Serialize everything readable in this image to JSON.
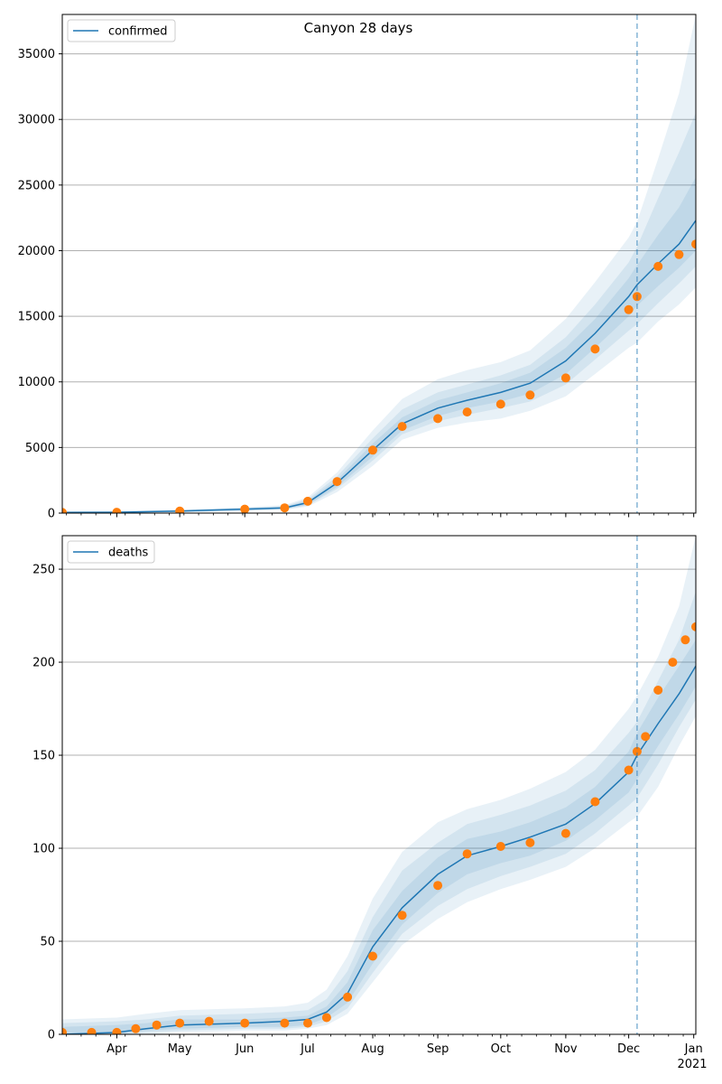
{
  "figure": {
    "title": "Canyon 28 days"
  },
  "colors": {
    "model_line": "#1f77b4",
    "observed": "#ff7f0e",
    "band": "#1f77b4",
    "grid": "#b0b0b0",
    "forecast_line": "#1f77b4"
  },
  "x_axis": {
    "month_labels": [
      "Apr",
      "May",
      "Jun",
      "Jul",
      "Aug",
      "Sep",
      "Oct",
      "Nov",
      "Dec",
      "Jan"
    ],
    "month_dates": [
      "2020-04-01",
      "2020-05-01",
      "2020-06-01",
      "2020-07-01",
      "2020-08-01",
      "2020-09-01",
      "2020-10-01",
      "2020-11-01",
      "2020-12-01",
      "2021-01-01"
    ],
    "year_label": "2021",
    "range": [
      "2020-03-06",
      "2021-01-02"
    ],
    "forecast_start": "2020-12-05"
  },
  "chart_data": [
    {
      "type": "line",
      "legend": "confirmed",
      "legend_position": "upper-left",
      "grid": "horizontal",
      "ylim": [
        0,
        38000
      ],
      "yticks": [
        0,
        5000,
        10000,
        15000,
        20000,
        25000,
        30000,
        35000
      ],
      "model": {
        "x": [
          "2020-03-06",
          "2020-04-01",
          "2020-05-01",
          "2020-06-01",
          "2020-06-20",
          "2020-07-01",
          "2020-07-15",
          "2020-08-01",
          "2020-08-15",
          "2020-09-01",
          "2020-09-15",
          "2020-10-01",
          "2020-10-15",
          "2020-11-01",
          "2020-11-15",
          "2020-12-01",
          "2020-12-05",
          "2020-12-15",
          "2020-12-25",
          "2021-01-02"
        ],
        "y": [
          50,
          60,
          150,
          300,
          400,
          800,
          2300,
          4800,
          6800,
          8000,
          8600,
          9200,
          9900,
          11600,
          13700,
          16500,
          17400,
          19000,
          20500,
          22300
        ]
      },
      "bands": [
        {
          "lower": [
            0,
            0,
            60,
            150,
            250,
            500,
            1600,
            3600,
            5600,
            6500,
            6900,
            7200,
            7800,
            8900,
            10600,
            12600,
            13000,
            14600,
            15900,
            17200
          ],
          "upper": [
            120,
            150,
            260,
            450,
            600,
            1200,
            3100,
            6300,
            8700,
            10200,
            10900,
            11500,
            12400,
            14800,
            17600,
            21000,
            22200,
            27000,
            32000,
            38000
          ]
        },
        {
          "lower": [
            0,
            10,
            80,
            190,
            290,
            590,
            1850,
            4000,
            6000,
            7000,
            7500,
            8000,
            8500,
            9800,
            11700,
            13900,
            14400,
            16000,
            17500,
            18800
          ],
          "upper": [
            100,
            120,
            220,
            400,
            540,
            1050,
            2800,
            5700,
            7900,
            9200,
            9800,
            10500,
            11300,
            13400,
            15900,
            19100,
            20300,
            24000,
            27500,
            30500
          ]
        },
        {
          "lower": [
            10,
            25,
            100,
            230,
            330,
            650,
            2000,
            4300,
            6300,
            7400,
            8000,
            8500,
            9100,
            10600,
            12600,
            15000,
            15800,
            17300,
            18700,
            20000
          ],
          "upper": [
            80,
            95,
            190,
            360,
            480,
            940,
            2550,
            5300,
            7300,
            8600,
            9200,
            9900,
            10700,
            12600,
            14800,
            17900,
            18900,
            21200,
            23300,
            25600
          ]
        }
      ],
      "observed": {
        "x": [
          "2020-03-06",
          "2020-04-01",
          "2020-05-01",
          "2020-06-01",
          "2020-06-20",
          "2020-07-01",
          "2020-07-15",
          "2020-08-01",
          "2020-08-15",
          "2020-09-01",
          "2020-09-15",
          "2020-10-01",
          "2020-10-15",
          "2020-11-01",
          "2020-11-15",
          "2020-12-01",
          "2020-12-05",
          "2020-12-15",
          "2020-12-25",
          "2021-01-02"
        ],
        "y": [
          50,
          60,
          150,
          300,
          400,
          900,
          2400,
          4800,
          6600,
          7200,
          7700,
          8300,
          9000,
          10300,
          12500,
          15500,
          16500,
          18800,
          19700,
          20500
        ]
      }
    },
    {
      "type": "line",
      "legend": "deaths",
      "legend_position": "upper-left",
      "grid": "horizontal",
      "ylim": [
        0,
        268
      ],
      "yticks": [
        0,
        50,
        100,
        150,
        200,
        250
      ],
      "model": {
        "x": [
          "2020-03-06",
          "2020-04-01",
          "2020-04-15",
          "2020-05-01",
          "2020-06-01",
          "2020-06-20",
          "2020-07-01",
          "2020-07-10",
          "2020-07-20",
          "2020-08-01",
          "2020-08-15",
          "2020-09-01",
          "2020-09-15",
          "2020-10-01",
          "2020-10-15",
          "2020-11-01",
          "2020-11-15",
          "2020-12-01",
          "2020-12-05",
          "2020-12-15",
          "2020-12-25",
          "2021-01-02"
        ],
        "y": [
          0,
          1,
          3,
          5,
          6,
          7,
          8,
          12,
          22,
          47,
          68,
          86,
          96,
          101,
          106,
          113,
          124,
          141,
          150,
          167,
          183,
          198
        ]
      },
      "bands": [
        {
          "lower": [
            0,
            0,
            0,
            1,
            2,
            2,
            3,
            5,
            11,
            28,
            48,
            62,
            71,
            78,
            83,
            90,
            100,
            114,
            117,
            133,
            155,
            171
          ],
          "upper": [
            8,
            9,
            11,
            13,
            14,
            15,
            17,
            24,
            42,
            73,
            98,
            114,
            121,
            126,
            132,
            141,
            153,
            175,
            182,
            203,
            230,
            268
          ]
        },
        {
          "lower": [
            0,
            0,
            1,
            2,
            3,
            3,
            4,
            7,
            14,
            33,
            54,
            69,
            78,
            85,
            90,
            97,
            108,
            123,
            127,
            145,
            165,
            180
          ],
          "upper": [
            6,
            7,
            8,
            10,
            11,
            12,
            13,
            19,
            34,
            63,
            88,
            103,
            113,
            118,
            123,
            131,
            142,
            162,
            168,
            190,
            212,
            238
          ]
        },
        {
          "lower": [
            0,
            0,
            2,
            3,
            4,
            4,
            5,
            9,
            17,
            38,
            59,
            76,
            86,
            92,
            96,
            104,
            115,
            130,
            137,
            155,
            172,
            187
          ],
          "upper": [
            4,
            5,
            6,
            8,
            8,
            9,
            10,
            15,
            28,
            56,
            77,
            95,
            105,
            109,
            114,
            122,
            133,
            152,
            162,
            181,
            198,
            212
          ]
        }
      ],
      "observed": {
        "x": [
          "2020-03-06",
          "2020-03-20",
          "2020-04-01",
          "2020-04-10",
          "2020-04-20",
          "2020-05-01",
          "2020-05-15",
          "2020-06-01",
          "2020-06-20",
          "2020-07-01",
          "2020-07-10",
          "2020-07-20",
          "2020-08-01",
          "2020-08-15",
          "2020-09-01",
          "2020-09-15",
          "2020-10-01",
          "2020-10-15",
          "2020-11-01",
          "2020-11-15",
          "2020-12-01",
          "2020-12-05",
          "2020-12-09",
          "2020-12-15",
          "2020-12-22",
          "2020-12-28",
          "2021-01-02"
        ],
        "y": [
          1,
          1,
          1,
          3,
          5,
          6,
          7,
          6,
          6,
          6,
          9,
          20,
          42,
          64,
          80,
          97,
          101,
          103,
          108,
          125,
          142,
          152,
          160,
          185,
          200,
          212,
          219
        ]
      }
    }
  ]
}
